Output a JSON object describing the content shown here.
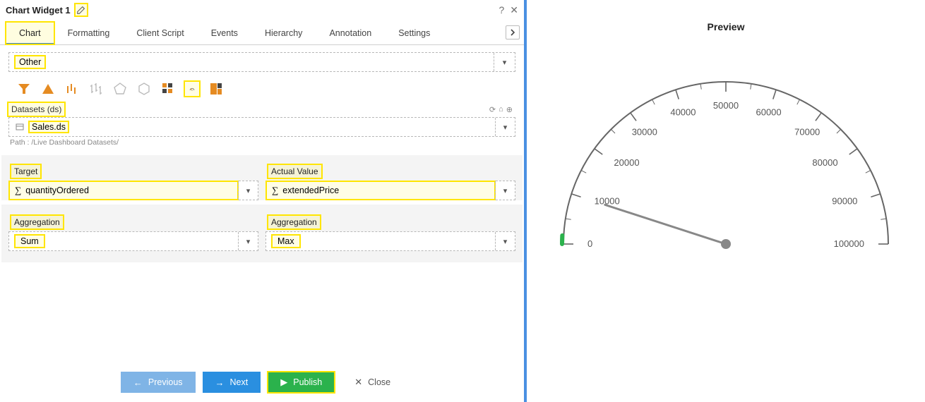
{
  "window": {
    "title": "Chart Widget 1"
  },
  "tabs": {
    "items": [
      "Chart",
      "Formatting",
      "Client Script",
      "Events",
      "Hierarchy",
      "Annotation",
      "Settings"
    ],
    "active_index": 0
  },
  "category_dropdown": {
    "value": "Other"
  },
  "chart_type_icons": [
    {
      "name": "funnel",
      "color": "#e58b22"
    },
    {
      "name": "pyramid",
      "color": "#e58b22"
    },
    {
      "name": "candlestick",
      "color": "#e58b22"
    },
    {
      "name": "ohlc",
      "color": "#bbbbbb"
    },
    {
      "name": "radar-pentagon",
      "color": "#bbbbbb"
    },
    {
      "name": "radar-hexagon",
      "color": "#bbbbbb"
    },
    {
      "name": "heatmap",
      "color": "#e58b22"
    },
    {
      "name": "gauge",
      "color": "#e58b22",
      "selected": true
    },
    {
      "name": "treemap",
      "color": "#e58b22"
    }
  ],
  "datasets": {
    "label": "Datasets (ds)",
    "value": "Sales.ds",
    "path_hint": "Path : /Live Dashboard Datasets/"
  },
  "fields": {
    "target": {
      "label": "Target",
      "value": "quantityOrdered"
    },
    "actual_value": {
      "label": "Actual Value",
      "value": "extendedPrice"
    },
    "agg_left": {
      "label": "Aggregation",
      "value": "Sum"
    },
    "agg_right": {
      "label": "Aggregation",
      "value": "Max"
    }
  },
  "footer_buttons": {
    "previous": "Previous",
    "next": "Next",
    "publish": "Publish",
    "close": "Close"
  },
  "preview": {
    "title": "Preview",
    "gauge": {
      "type": "gauge",
      "min": 0,
      "max": 100000,
      "tick_step": 10000,
      "tick_labels": [
        "0",
        "10000",
        "20000",
        "30000",
        "40000",
        "50000",
        "60000",
        "70000",
        "80000",
        "90000",
        "100000"
      ],
      "needle_value": 10000,
      "arc_color": "#666666",
      "tick_color": "#666666",
      "needle_color": "#888888",
      "label_color": "#555555",
      "label_fontsize": 13,
      "background_color": "#ffffff",
      "marker_color": "#2bb24c",
      "arc_stroke_width": 2
    }
  },
  "highlights": {
    "color": "#ffe500",
    "items": [
      "edit-icon",
      "tab-chart",
      "category-value",
      "gauge-icon",
      "datasets-label",
      "datasets-value",
      "target-label",
      "target-value",
      "actual-label",
      "actual-value",
      "agg-left-label",
      "agg-left-value",
      "agg-right-label",
      "agg-right-value",
      "publish-button"
    ]
  }
}
